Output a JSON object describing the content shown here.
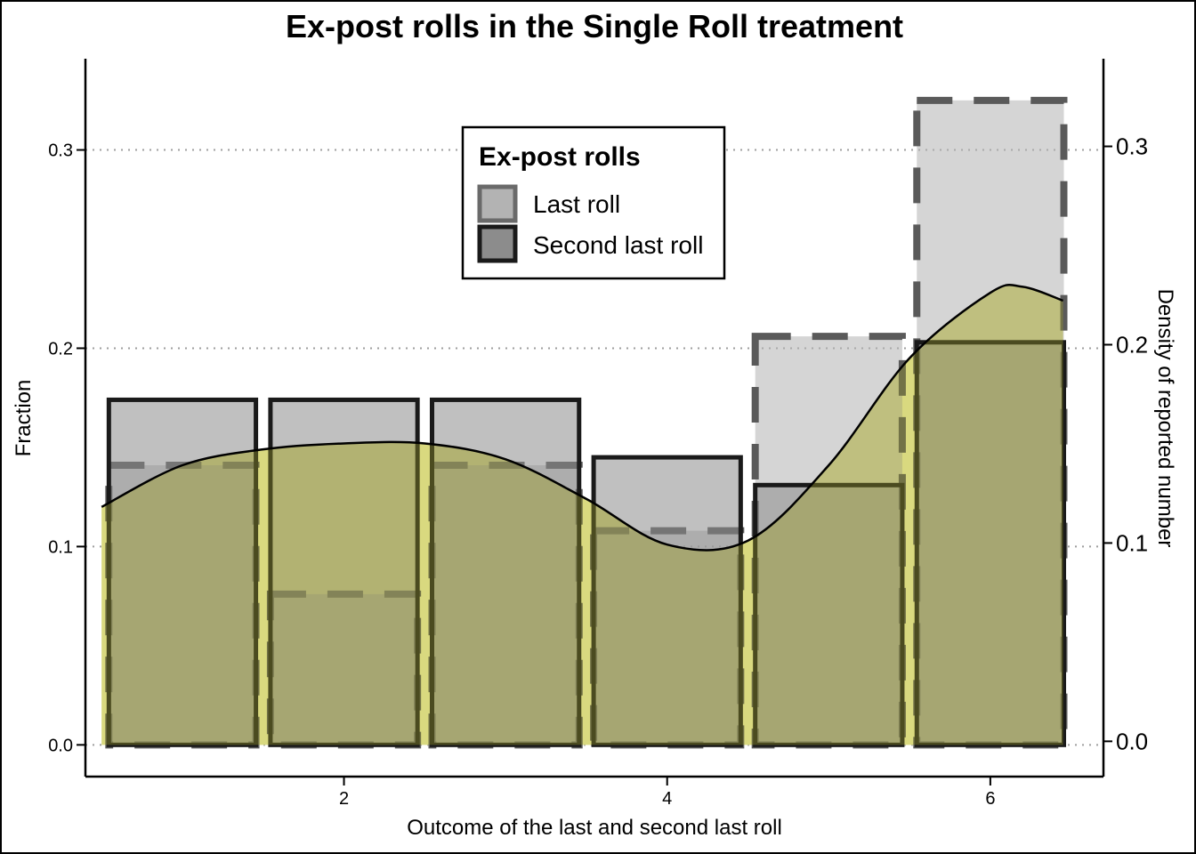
{
  "chart_data": {
    "type": "bar",
    "title": "Ex-post rolls in the Single Roll treatment",
    "xlabel": "Outcome of the last and second last roll",
    "ylabel": "Fraction",
    "y2label": "Density of reported number",
    "categories": [
      1,
      2,
      3,
      4,
      5,
      6
    ],
    "x_ticks": [
      "2",
      "4",
      "6"
    ],
    "y_ticks": [
      "0.0",
      "0.1",
      "0.2",
      "0.3"
    ],
    "y2_ticks": [
      "0.0",
      "0.1",
      "0.2",
      "0.3"
    ],
    "ylim": [
      -0.016,
      0.346
    ],
    "xlim": [
      0.4,
      6.7
    ],
    "grid": "horizontal dotted",
    "legend": {
      "title": "Ex-post rolls",
      "position": "top-center",
      "entries": [
        "Last roll",
        "Second last roll"
      ]
    },
    "series": [
      {
        "name": "Last roll",
        "values": [
          0.141,
          0.076,
          0.141,
          0.108,
          0.206,
          0.325
        ],
        "fill": "#b3b3b3",
        "stroke": "#5a5a5a",
        "dash": true
      },
      {
        "name": "Second last roll",
        "values": [
          0.174,
          0.174,
          0.174,
          0.145,
          0.131,
          0.203
        ],
        "fill": "#8c8c8c",
        "stroke": "#1a1a1a",
        "dash": false
      }
    ],
    "density": {
      "x": [
        0.5,
        1.0,
        1.5,
        2.0,
        2.5,
        3.0,
        3.5,
        4.0,
        4.5,
        5.0,
        5.5,
        6.0,
        6.2,
        6.45
      ],
      "y": [
        0.12,
        0.141,
        0.149,
        0.152,
        0.152,
        0.144,
        0.124,
        0.101,
        0.103,
        0.141,
        0.195,
        0.228,
        0.231,
        0.224
      ],
      "fill": "#ffffb3",
      "overlay": "#9a9a2a"
    }
  }
}
